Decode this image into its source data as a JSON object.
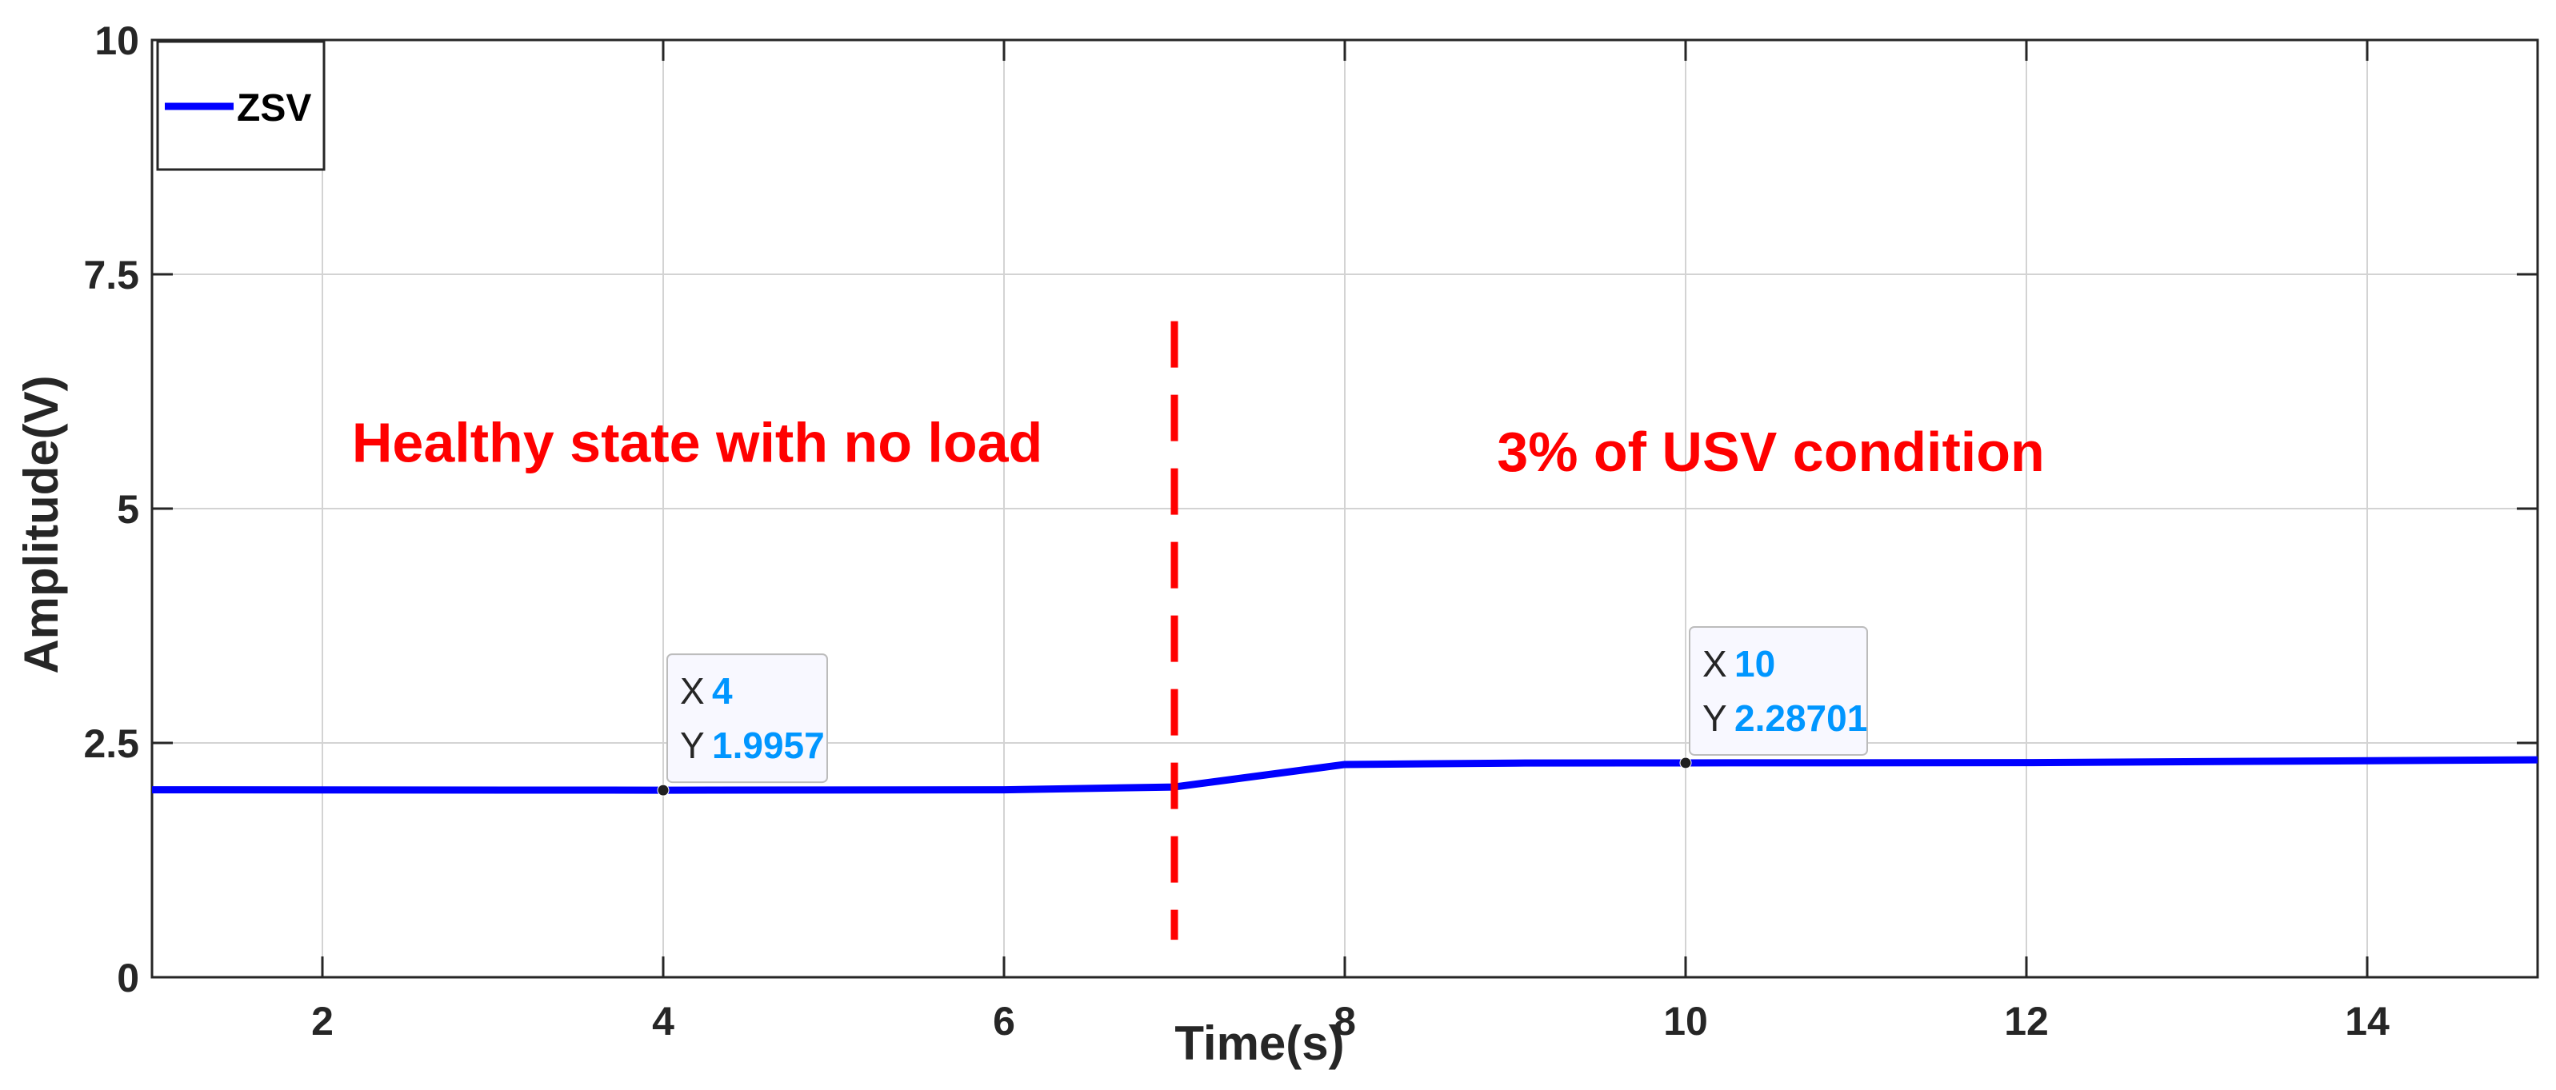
{
  "chart_data": {
    "type": "line",
    "xlabel": "Time(s)",
    "ylabel": "Amplitude(V)",
    "xlim": [
      1,
      15
    ],
    "ylim": [
      0,
      10
    ],
    "x_ticks": [
      2,
      4,
      6,
      8,
      10,
      12,
      14
    ],
    "x_tick_labels": [
      "2",
      "4",
      "6",
      "8",
      "10",
      "12",
      "14"
    ],
    "y_ticks": [
      0,
      2.5,
      5,
      7.5,
      10
    ],
    "y_tick_labels": [
      "0",
      "2.5",
      "5",
      "7.5",
      "10"
    ],
    "grid": true,
    "legend": {
      "position": "top-left",
      "entries": [
        "ZSV"
      ]
    },
    "series": [
      {
        "name": "ZSV",
        "color": "#0000ff",
        "x": [
          1,
          4,
          6,
          7,
          8,
          9,
          10,
          12,
          15
        ],
        "y": [
          2.0,
          1.9957,
          2.0,
          2.03,
          2.27,
          2.285,
          2.28701,
          2.29,
          2.32
        ]
      }
    ],
    "vertical_marker": {
      "x": 7,
      "y_range": [
        0.4,
        7.0
      ],
      "color": "#ff0000",
      "style": "dashed"
    },
    "annotations": [
      {
        "text": "Healthy state with no load",
        "x": 4.2,
        "y": 5.5
      },
      {
        "text": "3% of USV condition",
        "x": 10.5,
        "y": 5.4
      }
    ],
    "datatips": [
      {
        "x_key": "X",
        "x_value": "4",
        "y_key": "Y",
        "y_value": "1.9957",
        "x": 4,
        "y": 1.9957
      },
      {
        "x_key": "X",
        "x_value": "10",
        "y_key": "Y",
        "y_value": "2.28701",
        "x": 10,
        "y": 2.28701
      }
    ],
    "colors": {
      "annotation": "#ff0000",
      "datatip_value": "#0096ff"
    }
  }
}
